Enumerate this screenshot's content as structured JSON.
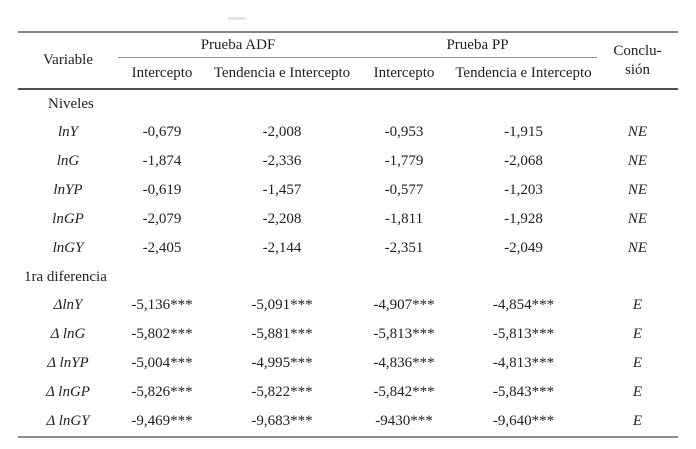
{
  "table": {
    "header": {
      "variable": "Variable",
      "adf_group": "Prueba ADF",
      "pp_group": "Prueba PP",
      "adf_intercept": "Intercepto",
      "adf_trend": "Tendencia e Intercepto",
      "pp_intercept": "Intercepto",
      "pp_trend": "Tendencia e Intercepto",
      "conclusion_line1": "Conclu-",
      "conclusion_line2": "sión"
    },
    "sections": [
      {
        "label": "Niveles",
        "rows": [
          {
            "variable": "lnY",
            "adf_intercept": "-0,679",
            "adf_trend": "-2,008",
            "pp_intercept": "-0,953",
            "pp_trend": "-1,915",
            "conclusion": "NE"
          },
          {
            "variable": "lnG",
            "adf_intercept": "-1,874",
            "adf_trend": "-2,336",
            "pp_intercept": "-1,779",
            "pp_trend": "-2,068",
            "conclusion": "NE"
          },
          {
            "variable": "lnYP",
            "adf_intercept": "-0,619",
            "adf_trend": "-1,457",
            "pp_intercept": "-0,577",
            "pp_trend": "-1,203",
            "conclusion": "NE"
          },
          {
            "variable": "lnGP",
            "adf_intercept": "-2,079",
            "adf_trend": "-2,208",
            "pp_intercept": "-1,811",
            "pp_trend": "-1,928",
            "conclusion": "NE"
          },
          {
            "variable": "lnGY",
            "adf_intercept": "-2,405",
            "adf_trend": "-2,144",
            "pp_intercept": "-2,351",
            "pp_trend": "-2,049",
            "conclusion": "NE"
          }
        ]
      },
      {
        "label": "1ra diferencia",
        "rows": [
          {
            "variable": "ΔlnY",
            "adf_intercept": "-5,136***",
            "adf_trend": "-5,091***",
            "pp_intercept": "-4,907***",
            "pp_trend": "-4,854***",
            "conclusion": "E"
          },
          {
            "variable": "Δ lnG",
            "adf_intercept": "-5,802***",
            "adf_trend": "-5,881***",
            "pp_intercept": "-5,813***",
            "pp_trend": "-5,813***",
            "conclusion": "E"
          },
          {
            "variable": "Δ lnYP",
            "adf_intercept": "-5,004***",
            "adf_trend": "-4,995***",
            "pp_intercept": "-4,836***",
            "pp_trend": "-4,813***",
            "conclusion": "E"
          },
          {
            "variable": "Δ lnGP",
            "adf_intercept": "-5,826***",
            "adf_trend": "-5,822***",
            "pp_intercept": "-5,842***",
            "pp_trend": "-5,843***",
            "conclusion": "E"
          },
          {
            "variable": "Δ lnGY",
            "adf_intercept": "-9,469***",
            "adf_trend": "-9,683***",
            "pp_intercept": "-9430***",
            "pp_trend": "-9,640***",
            "conclusion": "E"
          }
        ]
      }
    ]
  },
  "colors": {
    "text": "#1f1f1f",
    "rule_light": "#8f8f8f",
    "rule_dark": "#4f4f4f"
  }
}
